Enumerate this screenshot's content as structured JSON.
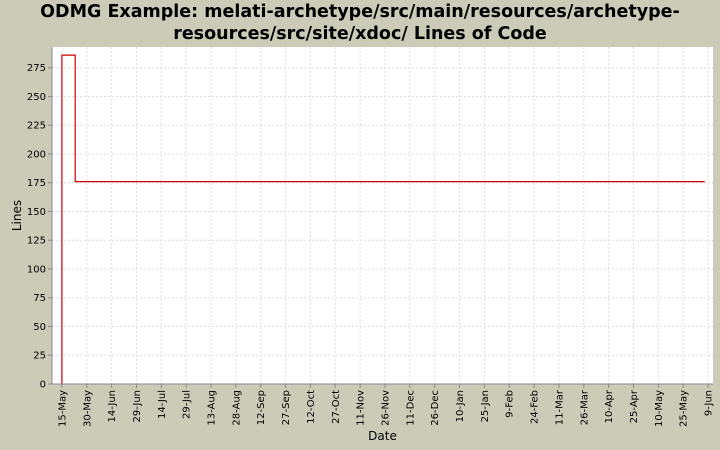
{
  "chart_data": {
    "type": "line",
    "title_line1": "ODMG Example: melati-archetype/src/main/resources/archetype-",
    "title_line2": "resources/src/site/xdoc/ Lines of Code",
    "xlabel": "Date",
    "ylabel": "Lines",
    "ylim": [
      0,
      293
    ],
    "y_ticks": [
      0,
      25,
      50,
      75,
      100,
      125,
      150,
      175,
      200,
      225,
      250,
      275
    ],
    "x_tick_labels": [
      "15-May",
      "30-May",
      "14-Jun",
      "29-Jun",
      "14-Jul",
      "29-Jul",
      "13-Aug",
      "28-Aug",
      "12-Sep",
      "27-Sep",
      "12-Oct",
      "27-Oct",
      "11-Nov",
      "26-Nov",
      "11-Dec",
      "26-Dec",
      "10-Jan",
      "25-Jan",
      "9-Feb",
      "24-Feb",
      "11-Mar",
      "26-Mar",
      "10-Apr",
      "25-Apr",
      "10-May",
      "25-May",
      "9-Jun"
    ],
    "x_tick_days": [
      0,
      15,
      30,
      45,
      60,
      75,
      90,
      105,
      120,
      135,
      150,
      165,
      180,
      195,
      210,
      225,
      240,
      255,
      270,
      285,
      300,
      315,
      330,
      345,
      360,
      375,
      390
    ],
    "xlim_days": [
      -6,
      393
    ],
    "grid": true,
    "line_color": "#cc0000",
    "series": [
      {
        "x_days": [
          0,
          0,
          8,
          8,
          388
        ],
        "values": [
          0,
          286,
          286,
          176,
          176
        ]
      }
    ]
  }
}
